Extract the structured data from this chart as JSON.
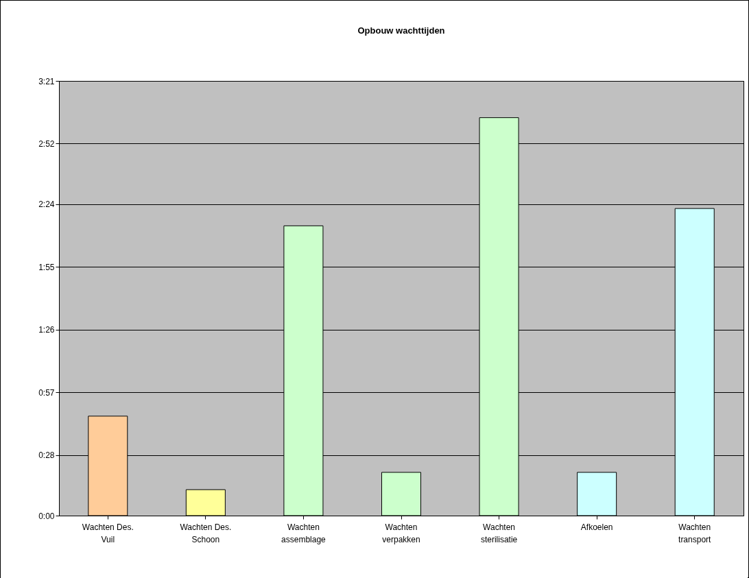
{
  "chart_data": {
    "type": "bar",
    "title": "Opbouw wachttijden",
    "categories": [
      "Wachten Des. Vuil",
      "Wachten Des. Schoon",
      "Wachten assemblage",
      "Wachten verpakken",
      "Wachten sterilisatie",
      "Afkoelen",
      "Wachten transport"
    ],
    "values": [
      46,
      12,
      134,
      20,
      184,
      20,
      142
    ],
    "colors": [
      "#ffcc99",
      "#ffff99",
      "#ccffcc",
      "#ccffcc",
      "#ccffcc",
      "#ccffff",
      "#ccffff"
    ],
    "ylim": [
      0,
      201
    ],
    "yticks": [
      {
        "value": 0,
        "label": "0:00"
      },
      {
        "value": 28,
        "label": "0:28"
      },
      {
        "value": 57,
        "label": "0:57"
      },
      {
        "value": 86,
        "label": "1:26"
      },
      {
        "value": 115,
        "label": "1:55"
      },
      {
        "value": 144,
        "label": "2:24"
      },
      {
        "value": 172,
        "label": "2:52"
      },
      {
        "value": 201,
        "label": "3:21"
      }
    ],
    "grid": "y"
  }
}
